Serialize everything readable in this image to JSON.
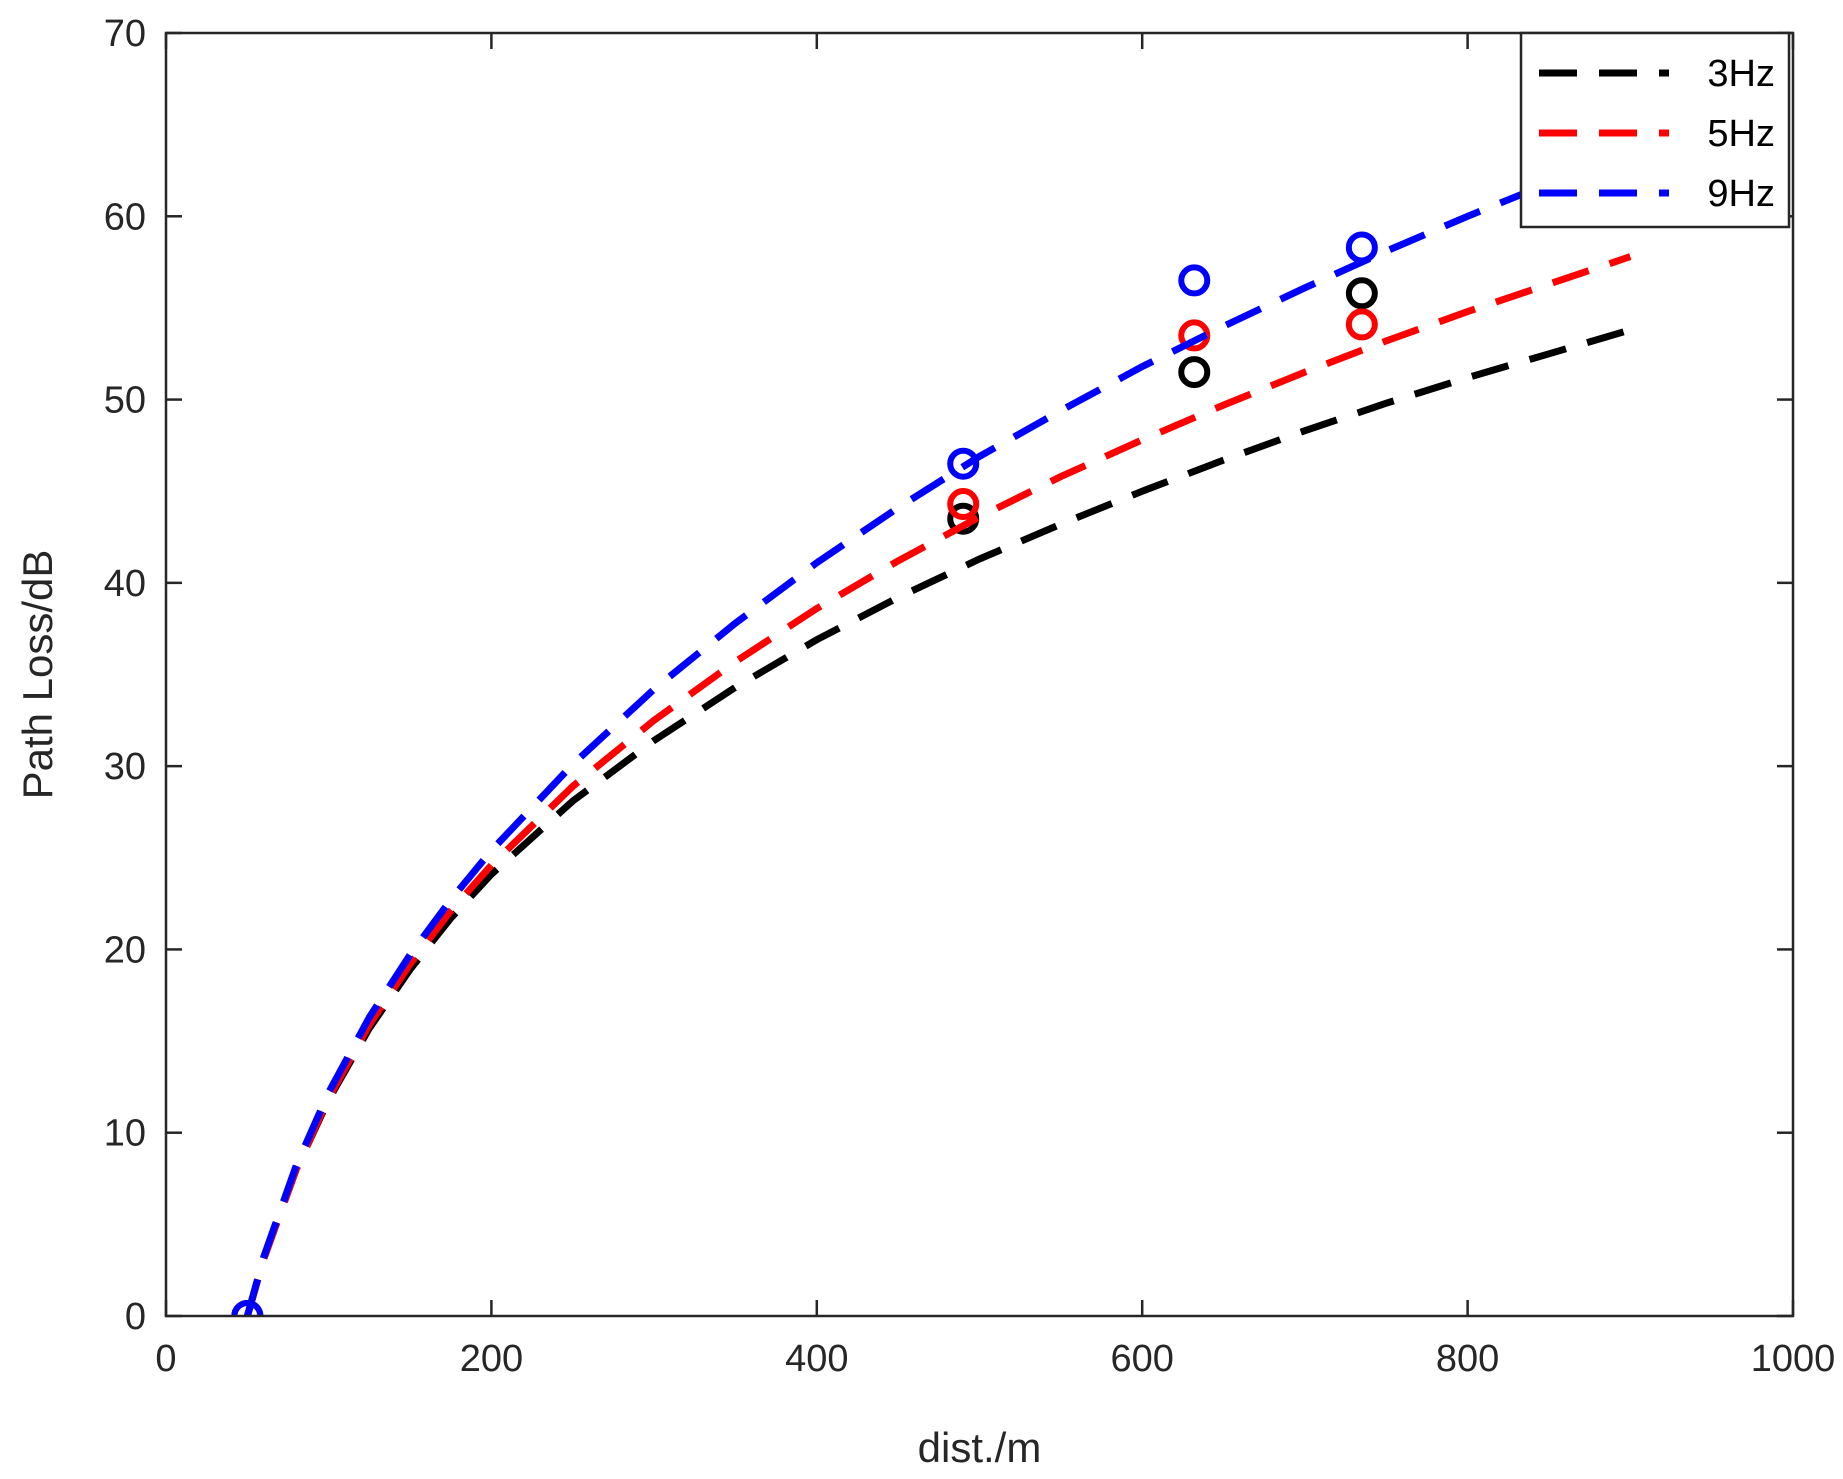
{
  "chart_data": {
    "type": "line",
    "xlabel": "dist./m",
    "ylabel": "Path Loss/dB",
    "xlim": [
      0,
      1000
    ],
    "ylim": [
      0,
      70
    ],
    "xticks": [
      0,
      200,
      400,
      600,
      800,
      1000
    ],
    "yticks": [
      0,
      10,
      20,
      30,
      40,
      50,
      60,
      70
    ],
    "grid": false,
    "legend_position": "top-right",
    "series": [
      {
        "name": "3Hz",
        "color": "#000000",
        "curve": {
          "x": [
            50,
            60,
            80,
            100,
            125,
            150,
            175,
            200,
            250,
            300,
            350,
            400,
            450,
            500,
            550,
            600,
            650,
            700,
            750,
            800,
            850,
            900
          ],
          "y": [
            0,
            3.1,
            8.0,
            11.8,
            15.7,
            18.9,
            21.7,
            24.1,
            28.1,
            31.4,
            34.3,
            36.9,
            39.2,
            41.3,
            43.2,
            45.0,
            46.7,
            48.3,
            49.8,
            51.2,
            52.5,
            53.8
          ]
        },
        "measured": {
          "x": [
            50,
            490,
            632,
            735
          ],
          "y": [
            0,
            43.5,
            51.5,
            55.8
          ]
        }
      },
      {
        "name": "5Hz",
        "color": "#ff0000",
        "curve": {
          "x": [
            50,
            60,
            80,
            100,
            125,
            150,
            175,
            200,
            250,
            300,
            350,
            400,
            450,
            500,
            550,
            600,
            650,
            700,
            750,
            800,
            850,
            900
          ],
          "y": [
            0,
            3.1,
            8.0,
            11.9,
            15.9,
            19.2,
            22.1,
            24.6,
            28.9,
            32.5,
            35.7,
            38.6,
            41.2,
            43.6,
            45.8,
            47.8,
            49.7,
            51.5,
            53.2,
            54.8,
            56.3,
            57.8
          ]
        },
        "measured": {
          "x": [
            50,
            490,
            632,
            735
          ],
          "y": [
            0,
            44.3,
            53.5,
            54.1
          ]
        }
      },
      {
        "name": "9Hz",
        "color": "#0000ff",
        "curve": {
          "x": [
            50,
            60,
            80,
            100,
            125,
            150,
            175,
            200,
            250,
            300,
            350,
            400,
            450,
            500,
            550,
            600,
            650,
            700,
            750,
            800,
            850,
            900
          ],
          "y": [
            0,
            3.2,
            8.2,
            12.2,
            16.3,
            19.7,
            22.7,
            25.4,
            30.1,
            34.2,
            37.8,
            41.1,
            44.1,
            46.9,
            49.4,
            51.8,
            54.0,
            56.1,
            58.1,
            60.0,
            61.8,
            63.5
          ]
        },
        "measured": {
          "x": [
            50,
            490,
            632,
            735
          ],
          "y": [
            0,
            46.5,
            56.5,
            58.3
          ]
        }
      }
    ]
  }
}
